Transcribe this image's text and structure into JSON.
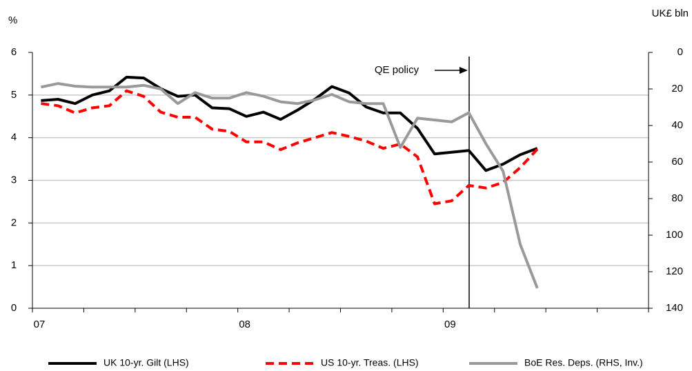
{
  "chart_data": {
    "type": "line",
    "y_label": "%",
    "y2_label": "UK£ bln",
    "annotation": "QE policy",
    "categories": [
      "07",
      null,
      null,
      null,
      null,
      null,
      null,
      null,
      null,
      null,
      null,
      null,
      "08",
      null,
      null,
      null,
      null,
      null,
      null,
      null,
      null,
      null,
      null,
      null,
      "09",
      null,
      null,
      null,
      null,
      null,
      null,
      null,
      null,
      null,
      null,
      null
    ],
    "series": [
      {
        "name": "UK 10-yr. Gilt (LHS)",
        "color": "#000000",
        "dash": false,
        "values": [
          4.87,
          4.9,
          4.8,
          5.0,
          5.1,
          5.42,
          5.4,
          5.15,
          4.97,
          5.0,
          4.7,
          4.68,
          4.5,
          4.6,
          4.43,
          4.65,
          4.9,
          5.2,
          5.05,
          4.72,
          4.58,
          4.58,
          4.22,
          3.62,
          3.66,
          3.7,
          3.23,
          3.38,
          3.6,
          3.75,
          null,
          null,
          null,
          null,
          null,
          null
        ]
      },
      {
        "name": "US 10-yr. Treas. (LHS)",
        "color": "#ff0000",
        "dash": true,
        "values": [
          4.8,
          4.75,
          4.58,
          4.7,
          4.75,
          5.1,
          4.97,
          4.6,
          4.48,
          4.48,
          4.2,
          4.15,
          3.9,
          3.9,
          3.72,
          3.88,
          4.0,
          4.12,
          4.03,
          3.92,
          3.75,
          3.85,
          3.55,
          2.45,
          2.52,
          2.88,
          2.82,
          2.95,
          3.3,
          3.73,
          null,
          null,
          null,
          null,
          null,
          null
        ]
      },
      {
        "name": "BoE Res. Deps. (RHS, Inv.)",
        "color": "#999999",
        "dash": false,
        "axis": "y2",
        "values": [
          19,
          17,
          18.5,
          19,
          19,
          19,
          18,
          20,
          28,
          22,
          25,
          25,
          22,
          24,
          27,
          28,
          26,
          23,
          27,
          28,
          28,
          52,
          36,
          37,
          38,
          33,
          50,
          65,
          105,
          129,
          null,
          null,
          null,
          null,
          null,
          null
        ]
      }
    ],
    "ylim": [
      0,
      6
    ],
    "yticks": [
      0,
      1,
      2,
      3,
      4,
      5,
      6
    ],
    "y2lim": [
      140,
      0
    ],
    "y2ticks": [
      0,
      20,
      40,
      60,
      80,
      100,
      120,
      140
    ],
    "grid": true
  }
}
